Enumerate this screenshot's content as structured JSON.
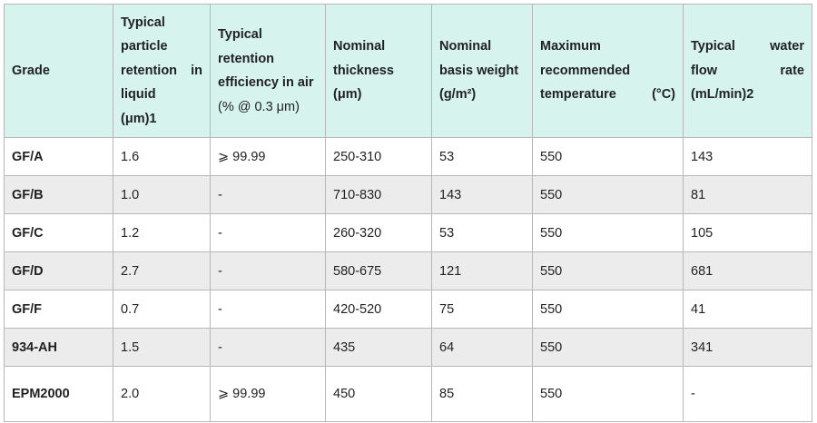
{
  "table": {
    "headers": [
      {
        "lines": [
          "Grade"
        ]
      },
      {
        "lines": [
          "Typical",
          "particle",
          "retention in",
          "liquid",
          "(μm)1"
        ]
      },
      {
        "lines": [
          "Typical",
          "retention",
          "efficiency in air",
          "(% @ 0.3 μm)"
        ]
      },
      {
        "lines": [
          "Nominal",
          "thickness",
          "(μm)"
        ]
      },
      {
        "lines": [
          "Nominal",
          "basis weight",
          "(g/m²)"
        ]
      },
      {
        "lines": [
          "Maximum",
          "recommended",
          "temperature (°C)"
        ]
      },
      {
        "lines": [
          "Typical water",
          "flow rate",
          "(mL/min)2"
        ]
      }
    ],
    "rows": [
      [
        "GF/A",
        "1.6",
        "⩾ 99.99",
        "250-310",
        "53",
        "550",
        "143"
      ],
      [
        "GF/B",
        "1.0",
        "-",
        "710-830",
        "143",
        "550",
        "81"
      ],
      [
        "GF/C",
        "1.2",
        "-",
        "260-320",
        "53",
        "550",
        "105"
      ],
      [
        "GF/D",
        "2.7",
        "-",
        "580-675",
        "121",
        "550",
        "681"
      ],
      [
        "GF/F",
        "0.7",
        "-",
        "420-520",
        "75",
        "550",
        "41"
      ],
      [
        "934-AH",
        "1.5",
        "-",
        "435",
        "64",
        "550",
        "341"
      ],
      [
        "EPM2000",
        "2.0",
        "⩾ 99.99",
        "450",
        "85",
        "550",
        "-"
      ]
    ]
  }
}
